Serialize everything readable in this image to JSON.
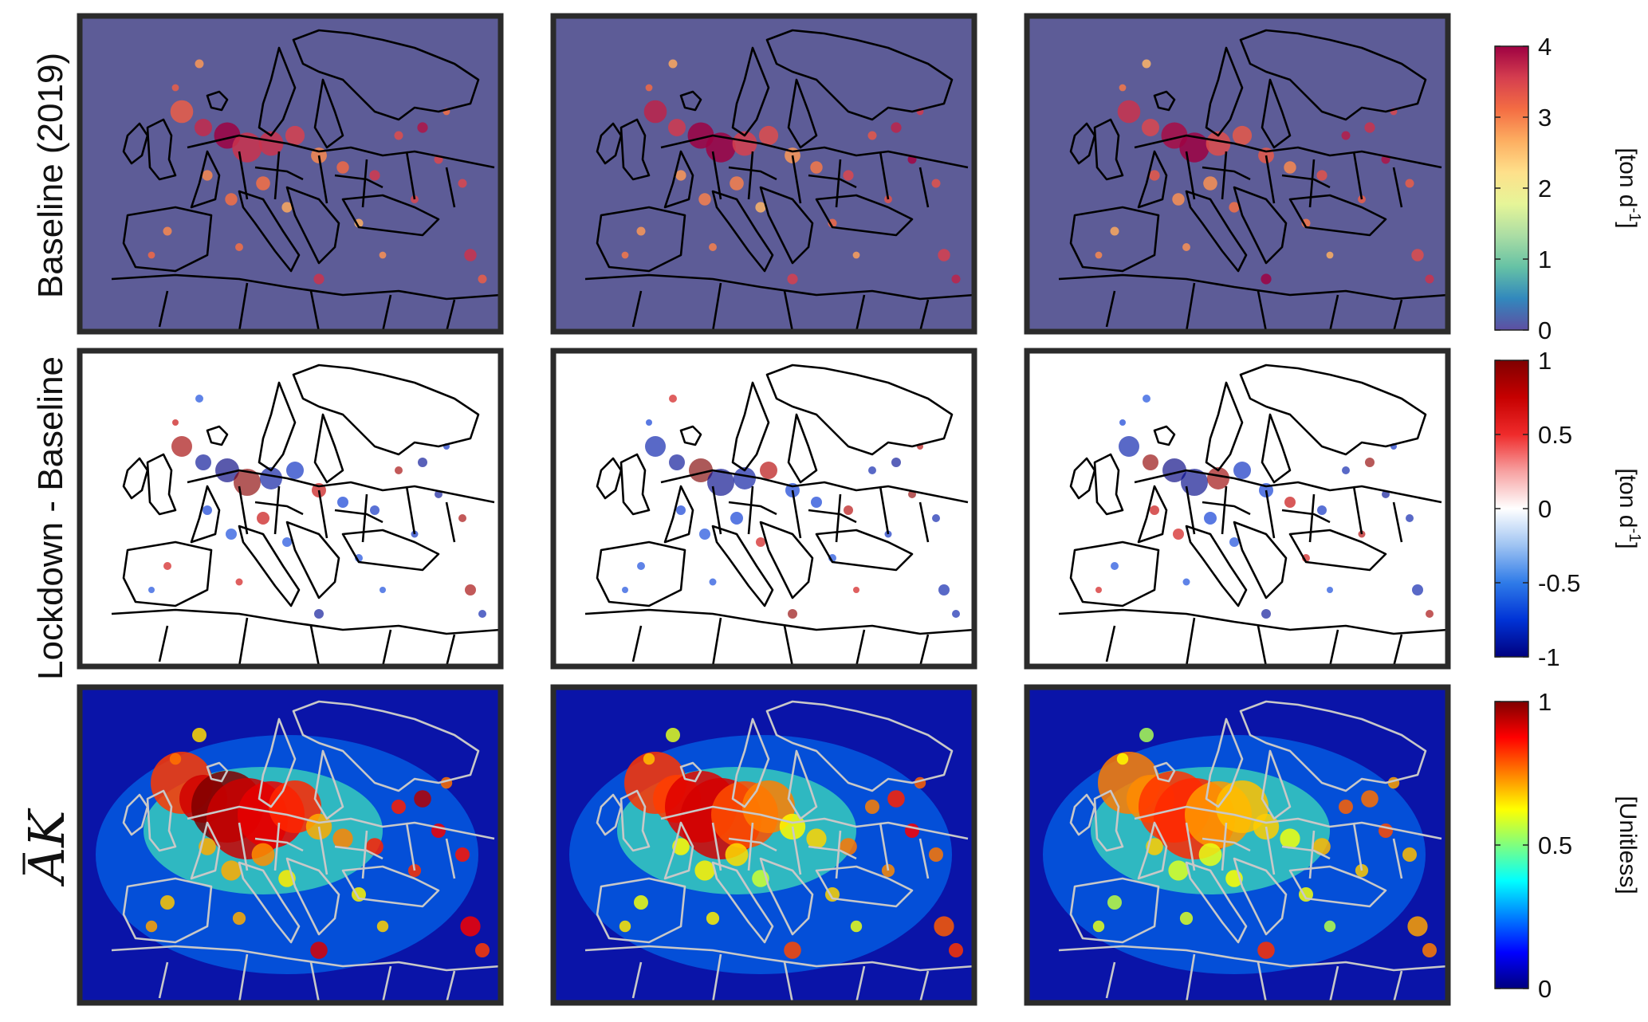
{
  "chart_data": {
    "type": "heatmap",
    "layout": {
      "rows": 3,
      "columns": 3
    },
    "column_titles": [],
    "rows": [
      {
        "row_label": "Baseline (2019)",
        "colorbar": {
          "label_main": "[ton d",
          "label_sup": "-1",
          "label_end": "]",
          "ticks": [
            {
              "value": 0,
              "label": "0"
            },
            {
              "value": 1,
              "label": "1"
            },
            {
              "value": 2,
              "label": "2"
            },
            {
              "value": 3,
              "label": "3"
            },
            {
              "value": 4,
              "label": "4"
            }
          ],
          "range": [
            0,
            4
          ],
          "colormap": [
            "#5e4fa2",
            "#3288bd",
            "#66c2a5",
            "#abdda4",
            "#e6f598",
            "#fee08b",
            "#fdae61",
            "#f46d43",
            "#d53e4f",
            "#9e0142"
          ]
        },
        "map_background": "#5d5c97",
        "border_color": "#000000"
      },
      {
        "row_label": "Lockdown - Baseline",
        "colorbar": {
          "label_main": "[ton d",
          "label_sup": "-1",
          "label_end": "]",
          "ticks": [
            {
              "value": -1,
              "label": "-1"
            },
            {
              "value": -0.5,
              "label": "-0.5"
            },
            {
              "value": 0,
              "label": "0"
            },
            {
              "value": 0.5,
              "label": "0.5"
            },
            {
              "value": 1,
              "label": "1"
            }
          ],
          "range": [
            -1,
            1
          ],
          "colormap": [
            "#00007f",
            "#0033d6",
            "#2f7be8",
            "#9ec3f2",
            "#ffffff",
            "#f7a2a2",
            "#ef2b2b",
            "#c60000",
            "#7f0000"
          ]
        },
        "map_background": "#ffffff",
        "border_color": "#000000"
      },
      {
        "row_label": "AK",
        "row_label_has_overbar": true,
        "colorbar": {
          "label_main": "[Unitless]",
          "label_sup": "",
          "label_end": "",
          "ticks": [
            {
              "value": 0,
              "label": "0"
            },
            {
              "value": 0.5,
              "label": "0.5"
            },
            {
              "value": 1,
              "label": "1"
            }
          ],
          "range": [
            0,
            1
          ],
          "colormap": [
            "#00007f",
            "#0000ff",
            "#007fff",
            "#00ffff",
            "#7fff7f",
            "#ffff00",
            "#ff7f00",
            "#ff0000",
            "#7f0000"
          ]
        },
        "map_background": "#0a14a8",
        "border_color": "#c8c8c8"
      }
    ]
  }
}
